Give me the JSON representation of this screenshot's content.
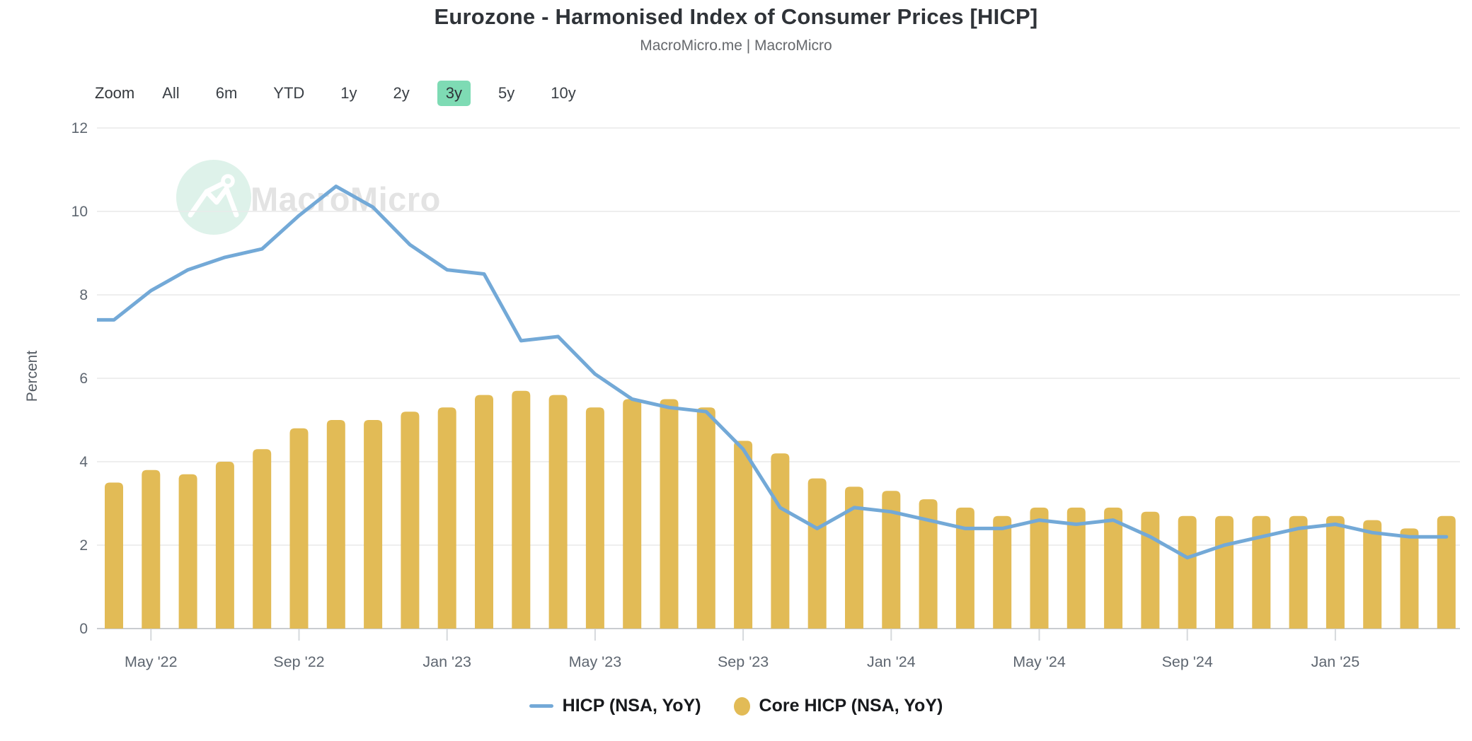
{
  "toolbar": {
    "zoom_label": "Zoom",
    "ranges": [
      "All",
      "6m",
      "YTD",
      "1y",
      "2y",
      "3y",
      "5y",
      "10y"
    ],
    "active_range": "3y",
    "active_bg": "#7edbb4"
  },
  "watermark": {
    "text": "MacroMicro",
    "circle_color": "#def2ea",
    "glyph_color": "#ffffff"
  },
  "chart_data": {
    "type": "combo",
    "title": "Eurozone - Harmonised Index of Consumer Prices [HICP]",
    "subtitle": "MacroMicro.me | MacroMicro",
    "ylabel": "Percent",
    "xlabel": "",
    "ylim": [
      0,
      12
    ],
    "yticks": [
      0,
      2,
      4,
      6,
      8,
      10,
      12
    ],
    "grid": true,
    "legend_position": "bottom",
    "x_tick_labels": [
      "May '22",
      "Sep '22",
      "Jan '23",
      "May '23",
      "Sep '23",
      "Jan '24",
      "May '24",
      "Sep '24",
      "Jan '25"
    ],
    "categories": [
      "Mar '22",
      "Apr '22",
      "May '22",
      "Jun '22",
      "Jul '22",
      "Aug '22",
      "Sep '22",
      "Oct '22",
      "Nov '22",
      "Dec '22",
      "Jan '23",
      "Feb '23",
      "Mar '23",
      "Apr '23",
      "May '23",
      "Jun '23",
      "Jul '23",
      "Aug '23",
      "Sep '23",
      "Oct '23",
      "Nov '23",
      "Dec '23",
      "Jan '24",
      "Feb '24",
      "Mar '24",
      "Apr '24",
      "May '24",
      "Jun '24",
      "Jul '24",
      "Aug '24",
      "Sep '24",
      "Oct '24",
      "Nov '24",
      "Dec '24",
      "Jan '25",
      "Feb '25",
      "Mar '25",
      "Apr '25"
    ],
    "series": [
      {
        "name": "HICP (NSA, YoY)",
        "type": "line",
        "color": "#73a9d7",
        "values": [
          7.4,
          7.4,
          8.1,
          8.6,
          8.9,
          9.1,
          9.9,
          10.6,
          10.1,
          9.2,
          8.6,
          8.5,
          6.9,
          7.0,
          6.1,
          5.5,
          5.3,
          5.2,
          4.3,
          2.9,
          2.4,
          2.9,
          2.8,
          2.6,
          2.4,
          2.4,
          2.6,
          2.5,
          2.6,
          2.2,
          1.7,
          2.0,
          2.2,
          2.4,
          2.5,
          2.3,
          2.2,
          2.2
        ]
      },
      {
        "name": "Core HICP (NSA, YoY)",
        "type": "bar",
        "color": "#e2bb56",
        "values": [
          null,
          3.5,
          3.8,
          3.7,
          4.0,
          4.3,
          4.8,
          5.0,
          5.0,
          5.2,
          5.3,
          5.6,
          5.7,
          5.6,
          5.3,
          5.5,
          5.5,
          5.3,
          4.5,
          4.2,
          3.6,
          3.4,
          3.3,
          3.1,
          2.9,
          2.7,
          2.9,
          2.9,
          2.9,
          2.8,
          2.7,
          2.7,
          2.7,
          2.7,
          2.7,
          2.6,
          2.4,
          2.7
        ]
      }
    ]
  }
}
